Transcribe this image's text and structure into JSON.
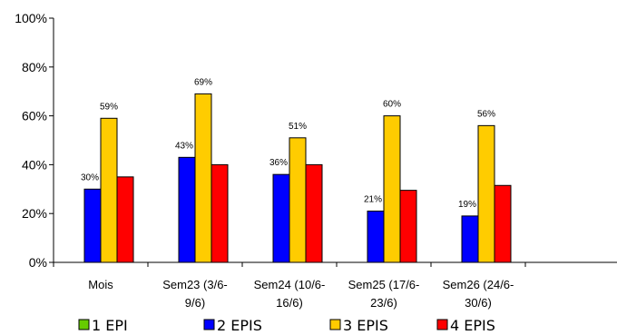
{
  "chart_data": {
    "type": "bar",
    "categories": [
      [
        "Mois"
      ],
      [
        "Sem23 (3/6-",
        "9/6)"
      ],
      [
        "Sem24 (10/6-",
        "16/6)"
      ],
      [
        "Sem25 (17/6-",
        "23/6)"
      ],
      [
        "Sem26 (24/6-",
        "30/6)"
      ],
      [
        ""
      ]
    ],
    "y_ticks": [
      "0%",
      "20%",
      "40%",
      "60%",
      "80%",
      "100%"
    ],
    "ylim": [
      0,
      100
    ],
    "grid": false,
    "legend_position": "bottom",
    "series": [
      {
        "name": "1 EPI",
        "color": "#66CC00",
        "values": [
          0,
          0,
          0,
          0,
          0,
          null
        ],
        "labels": [
          "",
          "",
          "",
          "",
          "",
          ""
        ]
      },
      {
        "name": "2 EPIS",
        "color": "#0000FF",
        "values": [
          30,
          43,
          36,
          21,
          19,
          null
        ],
        "labels": [
          "30%",
          "43%",
          "36%",
          "21%",
          "19%",
          ""
        ]
      },
      {
        "name": "3 EPIS",
        "color": "#FFCC00",
        "values": [
          59,
          69,
          51,
          60,
          56,
          null
        ],
        "labels": [
          "59%",
          "69%",
          "51%",
          "60%",
          "56%",
          ""
        ]
      },
      {
        "name": "4 EPIS",
        "color": "#FF0000",
        "values": [
          35,
          40,
          40,
          29.5,
          31.5,
          null
        ],
        "labels": [
          "",
          "",
          "",
          "",
          "",
          ""
        ]
      }
    ]
  }
}
